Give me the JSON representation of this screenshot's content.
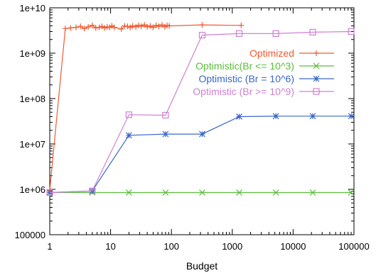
{
  "chart_data": {
    "type": "line",
    "title": "",
    "xlabel": "Budget",
    "ylabel": "",
    "xscale": "log",
    "yscale": "log",
    "xlim": [
      1,
      100000
    ],
    "ylim": [
      100000,
      10000000000
    ],
    "grid": false,
    "legend_position": "top-right",
    "x_tick_labels": [
      "1",
      "10",
      "100",
      "1000",
      "10000",
      "100000"
    ],
    "y_tick_labels": [
      "100000",
      "1e+06",
      "1e+07",
      "1e+08",
      "1e+09",
      "1e+10"
    ],
    "series": [
      {
        "name": "Optimized",
        "color": "#f05a32",
        "marker": "plus",
        "x": [
          1,
          1.8,
          2.2,
          2.7,
          3.2,
          3.7,
          4.3,
          5,
          5.7,
          6.5,
          7.2,
          8,
          8.8,
          9.6,
          10.5,
          11.5,
          15,
          17,
          19,
          21,
          23,
          26,
          29,
          32,
          36,
          40,
          45,
          50,
          56,
          62,
          70,
          78,
          85,
          92,
          320,
          1400
        ],
        "y": [
          950000,
          3500000000,
          3600000000,
          3700000000,
          3900000000,
          3500000000,
          3800000000,
          4100000000,
          3600000000,
          3700000000,
          3900000000,
          3600000000,
          3800000000,
          3700000000,
          4000000000,
          3700000000,
          3400000000,
          4000000000,
          3900000000,
          3700000000,
          4000000000,
          3800000000,
          4100000000,
          3900000000,
          4200000000,
          3800000000,
          4000000000,
          3700000000,
          4100000000,
          3900000000,
          4200000000,
          3800000000,
          4100000000,
          4000000000,
          4200000000,
          4100000000
        ]
      },
      {
        "name": "Optimistic(Br <= 10^3)",
        "color": "#5bbd3c",
        "marker": "x",
        "x": [
          1,
          5,
          20,
          80,
          320,
          1300,
          5200,
          21000,
          90000
        ],
        "y": [
          850000,
          850000,
          850000,
          850000,
          850000,
          850000,
          850000,
          850000,
          850000
        ]
      },
      {
        "name": "Optimistic (Br = 10^6)",
        "color": "#3a67c9",
        "marker": "asterisk",
        "x": [
          1,
          5,
          20,
          80,
          320,
          1300,
          5200,
          21000,
          90000
        ],
        "y": [
          850000,
          920000,
          15500000,
          16500000,
          16500000,
          40000000,
          41000000,
          41000000,
          41000000
        ]
      },
      {
        "name": "Optimistic (Br >= 10^9)",
        "color": "#d080d2",
        "marker": "square",
        "x": [
          1,
          5,
          20,
          80,
          320,
          1300,
          5200,
          21000,
          90000
        ],
        "y": [
          850000,
          920000,
          44000000,
          43000000,
          2500000000,
          2700000000,
          2700000000,
          2900000000,
          3000000000
        ]
      }
    ]
  }
}
